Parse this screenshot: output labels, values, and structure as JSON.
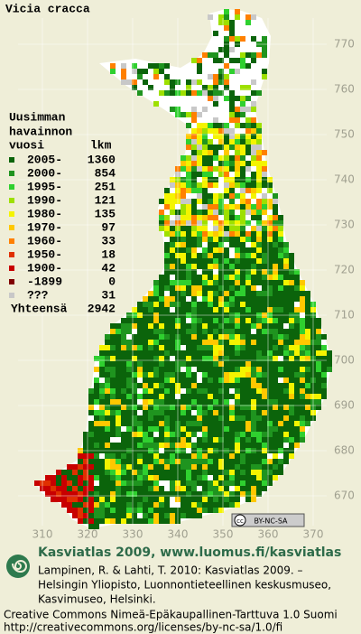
{
  "title": "Vicia cracca",
  "legend": {
    "heading": [
      "Uusimman",
      "havainnon"
    ],
    "col_period": "vuosi",
    "col_count": "lkm",
    "rows": [
      {
        "period": "2005-",
        "count": 1360,
        "color": "#0b640b"
      },
      {
        "period": "2000-",
        "count": 854,
        "color": "#1f941f"
      },
      {
        "period": "1995-",
        "count": 251,
        "color": "#2fd02f"
      },
      {
        "period": "1990-",
        "count": 121,
        "color": "#9ee000"
      },
      {
        "period": "1980-",
        "count": 135,
        "color": "#f4f400"
      },
      {
        "period": "1970-",
        "count": 97,
        "color": "#ffc800"
      },
      {
        "period": "1960-",
        "count": 33,
        "color": "#ff8000"
      },
      {
        "period": "1950-",
        "count": 18,
        "color": "#e03000"
      },
      {
        "period": "1900-",
        "count": 42,
        "color": "#c80000"
      },
      {
        "period": "-1899",
        "count": 0,
        "color": "#800000"
      },
      {
        "period": "???",
        "count": 31,
        "color": "#c8c8c8"
      }
    ],
    "total_label": "Yhteensä",
    "total": 2942
  },
  "grid": {
    "north": [
      770,
      760,
      750,
      740,
      730,
      720,
      710,
      700,
      690,
      680,
      670
    ],
    "east": [
      310,
      320,
      330,
      340,
      350,
      360,
      370
    ]
  },
  "license_badge": {
    "cc": "cc",
    "text": "BY-NC-SA"
  },
  "footer": {
    "brand": "Kasviatlas 2009, www.luomus.fi/kasviatlas",
    "citation": [
      "Lampinen, R. & Lahti, T. 2010: Kasviatlas 2009. –",
      "Helsingin Yliopisto, Luonnontieteellinen keskusmuseo,",
      "Kasvimuseo, Helsinki."
    ],
    "license": [
      "Creative Commons Nimeä-Epäkaupallinen-Tarttuva 1.0 Suomi",
      "http://creativecommons.org/licenses/by-nc-sa/1.0/fi"
    ]
  }
}
